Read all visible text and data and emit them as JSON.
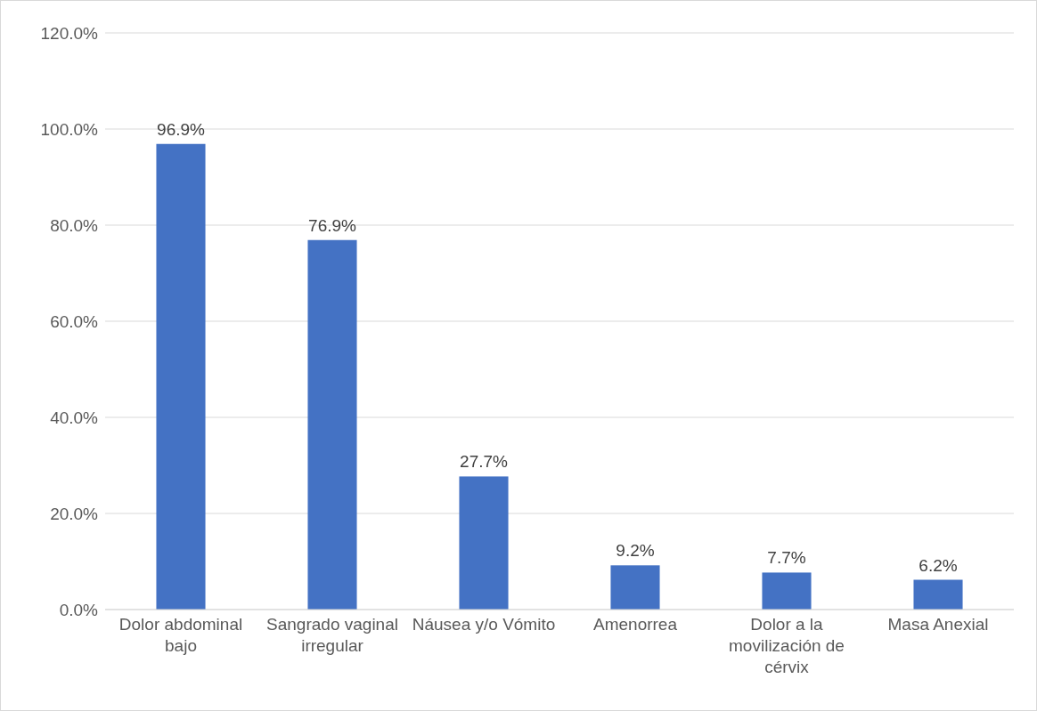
{
  "chart_data": {
    "type": "bar",
    "categories": [
      "Dolor abdominal bajo",
      "Sangrado vaginal irregular",
      "Náusea y/o Vómito",
      "Amenorrea",
      "Dolor a la movilización de cérvix",
      "Masa Anexial"
    ],
    "values": [
      96.9,
      76.9,
      27.7,
      9.2,
      7.7,
      6.2
    ],
    "value_labels": [
      "96.9%",
      "76.9%",
      "27.7%",
      "9.2%",
      "7.7%",
      "6.2%"
    ],
    "color": "#4472c4",
    "ylim": [
      0,
      120
    ],
    "yticks": [
      {
        "value": 0,
        "label": "0.0%"
      },
      {
        "value": 20,
        "label": "20.0%"
      },
      {
        "value": 40,
        "label": "40.0%"
      },
      {
        "value": 60,
        "label": "60.0%"
      },
      {
        "value": 80,
        "label": "80.0%"
      },
      {
        "value": 100,
        "label": "100.0%"
      },
      {
        "value": 120,
        "label": "120.0%"
      }
    ],
    "grid": "y"
  }
}
